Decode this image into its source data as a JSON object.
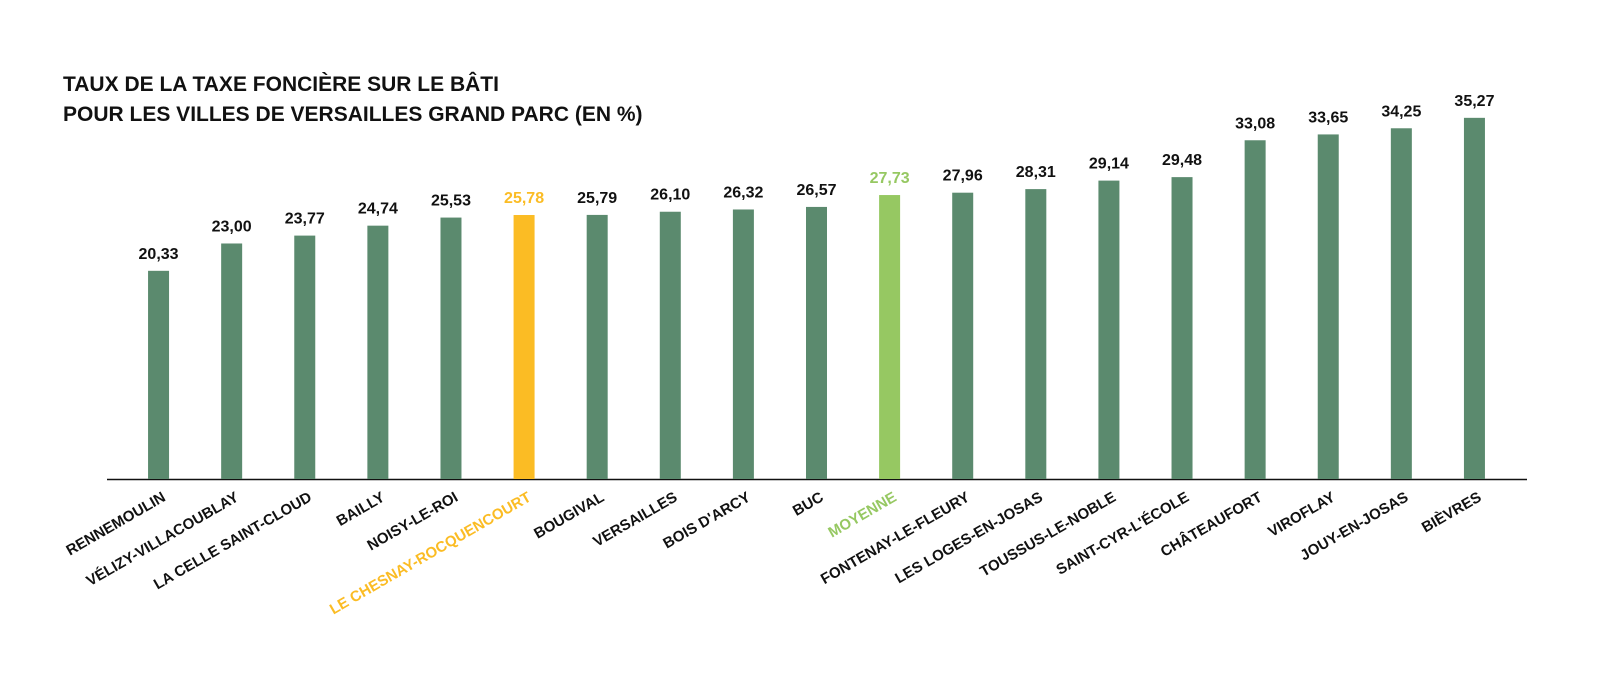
{
  "chart_data": {
    "type": "bar",
    "title_lines": [
      "TAUX DE LA TAXE FONCIÈRE SUR LE BÂTI",
      "POUR LES VILLES DE VERSAILLES GRAND PARC (EN %)"
    ],
    "categories": [
      "RENNEMOULIN",
      "VÉLIZY-VILLACOUBLAY",
      "LA CELLE SAINT-CLOUD",
      "BAILLY",
      "NOISY-LE-ROI",
      "LE CHESNAY-ROCQUENCOURT",
      "BOUGIVAL",
      "VERSAILLES",
      "BOIS D'ARCY",
      "BUC",
      "MOYENNE",
      "FONTENAY-LE-FLEURY",
      "LES LOGES-EN-JOSAS",
      "TOUSSUS-LE-NOBLE",
      "SAINT-CYR-L'ÉCOLE",
      "CHÂTEAUFORT",
      "VIROFLAY",
      "JOUY-EN-JOSAS",
      "BIÈVRES"
    ],
    "values": [
      20.33,
      23.0,
      23.77,
      24.74,
      25.53,
      25.78,
      25.79,
      26.1,
      26.32,
      26.57,
      27.73,
      27.96,
      28.31,
      29.14,
      29.48,
      33.08,
      33.65,
      34.25,
      35.27
    ],
    "value_labels": [
      "20,33",
      "23,00",
      "23,77",
      "24,74",
      "25,53",
      "25,78",
      "25,79",
      "26,10",
      "26,32",
      "26,57",
      "27,73",
      "27,96",
      "28,31",
      "29,14",
      "29,48",
      "33,08",
      "33,65",
      "34,25",
      "35,27"
    ],
    "colors": [
      "#5b8a6e",
      "#5b8a6e",
      "#5b8a6e",
      "#5b8a6e",
      "#5b8a6e",
      "#fbbc24",
      "#5b8a6e",
      "#5b8a6e",
      "#5b8a6e",
      "#5b8a6e",
      "#96c862",
      "#5b8a6e",
      "#5b8a6e",
      "#5b8a6e",
      "#5b8a6e",
      "#5b8a6e",
      "#5b8a6e",
      "#5b8a6e",
      "#5b8a6e"
    ],
    "ylim": [
      0,
      36
    ]
  }
}
